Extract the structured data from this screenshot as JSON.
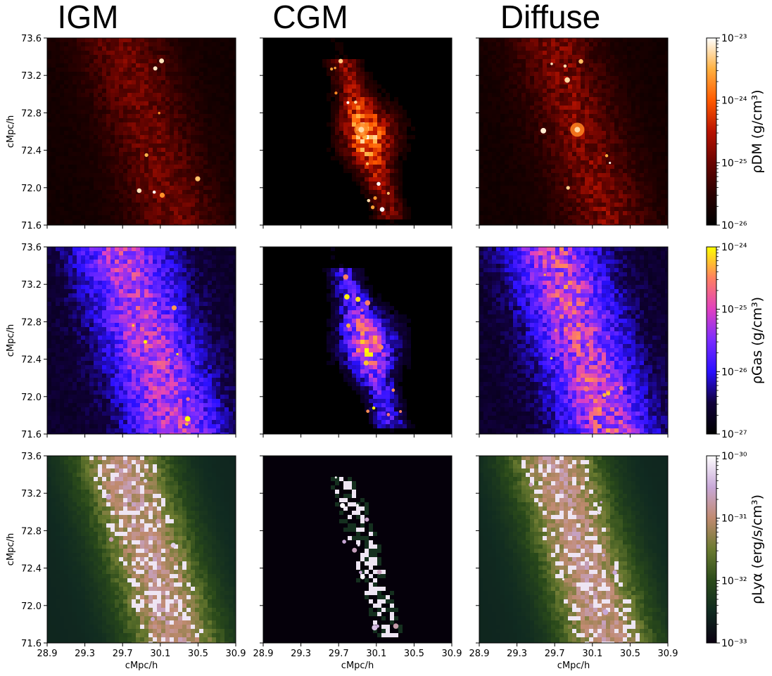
{
  "columns": [
    "IGM",
    "CGM",
    "Diffuse"
  ],
  "axes": {
    "xlabel": "cMpc/h",
    "ylabel": "cMpc/h",
    "xticks": [
      "28.9",
      "29.3",
      "29.7",
      "30.1",
      "30.5",
      "30.9"
    ],
    "yticks": [
      "71.6",
      "72.0",
      "72.4",
      "72.8",
      "73.2",
      "73.6"
    ]
  },
  "colors": {
    "dm_map": [
      "#000000",
      "#2a0000",
      "#6a0400",
      "#b81200",
      "#ff5a00",
      "#ffb040",
      "#ffffff"
    ],
    "gas_map": [
      "#000000",
      "#10003a",
      "#2a10ff",
      "#7a2cff",
      "#e040c0",
      "#ff8060",
      "#ffff00"
    ],
    "lya_map": [
      "#0a0010",
      "#102a20",
      "#2a4a1a",
      "#6a7a30",
      "#c08a70",
      "#c8a8d8",
      "#ffffff"
    ]
  },
  "chart_data": [
    {
      "type": "heatmap",
      "row": 0,
      "quantity": "DM",
      "colorbar": {
        "label": "ρDM (g/cm³)",
        "ticks": [
          "10⁻²³",
          "10⁻²⁴",
          "10⁻²⁵",
          "10⁻²⁶"
        ],
        "range_log10": [
          -26,
          -23
        ],
        "scale": "log"
      },
      "xlim": [
        28.9,
        30.9
      ],
      "ylim": [
        71.6,
        73.6
      ]
    },
    {
      "type": "heatmap",
      "row": 1,
      "quantity": "Gas",
      "colorbar": {
        "label": "ρGas (g/cm³)",
        "ticks": [
          "10⁻²⁴",
          "10⁻²⁵",
          "10⁻²⁶",
          "10⁻²⁷"
        ],
        "range_log10": [
          -27,
          -24
        ],
        "scale": "log"
      },
      "xlim": [
        28.9,
        30.9
      ],
      "ylim": [
        71.6,
        73.6
      ]
    },
    {
      "type": "heatmap",
      "row": 2,
      "quantity": "Lyα",
      "colorbar": {
        "label": "ρLyα (erg/s/cm³)",
        "ticks": [
          "10⁻³⁰",
          "10⁻³¹",
          "10⁻³²",
          "10⁻³³"
        ],
        "range_log10": [
          -33,
          -30
        ],
        "scale": "log"
      },
      "xlim": [
        28.9,
        30.9
      ],
      "ylim": [
        71.6,
        73.6
      ]
    }
  ]
}
